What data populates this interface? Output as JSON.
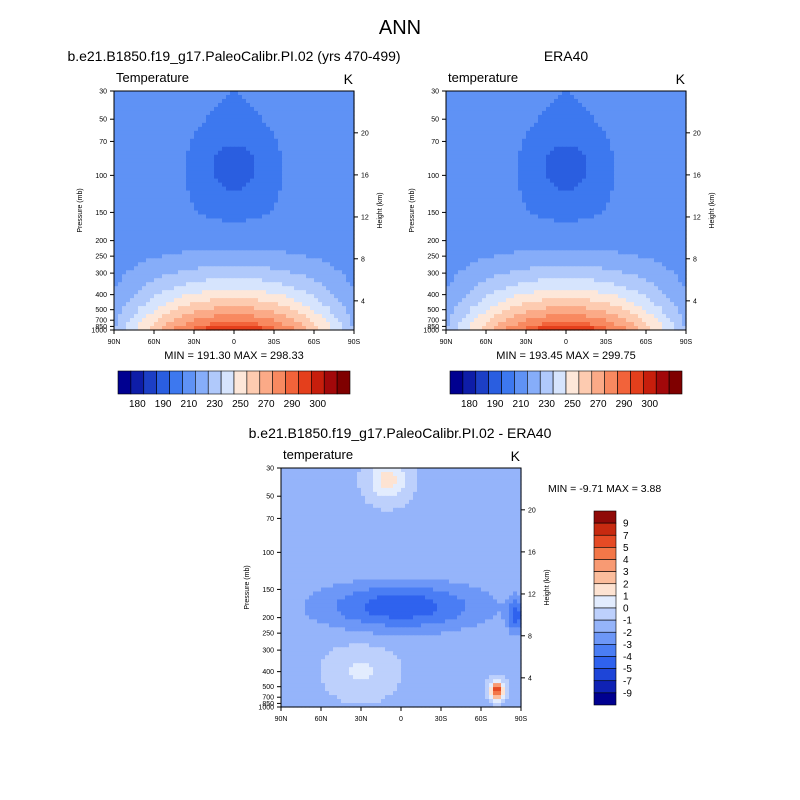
{
  "figure_title": "ANN",
  "colormaps": {
    "abs": [
      "#000090",
      "#0e1da8",
      "#1c3fc6",
      "#2a5ee0",
      "#3d78ef",
      "#5f92f5",
      "#86adf9",
      "#b0c9fb",
      "#d6e4fd",
      "#fde7d9",
      "#fdcbb0",
      "#fbaa87",
      "#f88960",
      "#f2633a",
      "#e43f1c",
      "#c71e0c",
      "#a2080a",
      "#7f0000"
    ],
    "diff": [
      "#000090",
      "#0f22b4",
      "#1e45d8",
      "#2f62ee",
      "#4a7df4",
      "#6d97f7",
      "#95b4fa",
      "#bdd0fc",
      "#e2ecfe",
      "#fde3d2",
      "#fbbd9c",
      "#f89a73",
      "#f37748",
      "#e54b25",
      "#c72a10",
      "#8f0a08"
    ]
  },
  "chart_data": [
    {
      "type": "contour",
      "title": "b.e21.B1850.f19_g17.PaleoCalibr.PI.02 (yrs 470-499)",
      "left_string": "Temperature",
      "right_string": "K",
      "xlabel": "",
      "ylabel": "Pressure (mb)",
      "y2label": "Height (km)",
      "x_ticks": [
        "90N",
        "60N",
        "30N",
        "0",
        "30S",
        "60S",
        "90S"
      ],
      "y_ticks": [
        "30",
        "50",
        "70",
        "100",
        "150",
        "200",
        "250",
        "300",
        "400",
        "500",
        "700",
        "850",
        "1000"
      ],
      "y2_ticks": [
        "20",
        "16",
        "12",
        "8",
        "4"
      ],
      "stats": "MIN = 191.30   MAX = 298.33",
      "min": 191.3,
      "max": 298.33,
      "colorbar_labels": [
        "180",
        "190",
        "210",
        "230",
        "250",
        "270",
        "290",
        "300"
      ],
      "levels": [
        180,
        185,
        190,
        200,
        210,
        220,
        230,
        240,
        250,
        260,
        270,
        280,
        290,
        295,
        300
      ],
      "variant": "model"
    },
    {
      "type": "contour",
      "title": "ERA40",
      "left_string": "temperature",
      "right_string": "K",
      "xlabel": "",
      "ylabel": "Pressure (mb)",
      "y2label": "Height (km)",
      "x_ticks": [
        "90N",
        "60N",
        "30N",
        "0",
        "30S",
        "60S",
        "90S"
      ],
      "y_ticks": [
        "30",
        "50",
        "70",
        "100",
        "150",
        "200",
        "250",
        "300",
        "400",
        "500",
        "700",
        "850",
        "1000"
      ],
      "y2_ticks": [
        "20",
        "16",
        "12",
        "8",
        "4"
      ],
      "stats": "MIN = 193.45   MAX = 299.75",
      "min": 193.45,
      "max": 299.75,
      "colorbar_labels": [
        "180",
        "190",
        "210",
        "230",
        "250",
        "270",
        "290",
        "300"
      ],
      "levels": [
        180,
        185,
        190,
        200,
        210,
        220,
        230,
        240,
        250,
        260,
        270,
        280,
        290,
        295,
        300
      ],
      "variant": "obs"
    },
    {
      "type": "contour",
      "title": "b.e21.B1850.f19_g17.PaleoCalibr.PI.02 - ERA40",
      "left_string": "temperature",
      "right_string": "K",
      "xlabel": "",
      "ylabel": "Pressure (mb)",
      "y2label": "Height (km)",
      "x_ticks": [
        "90N",
        "60N",
        "30N",
        "0",
        "30S",
        "60S",
        "90S"
      ],
      "y_ticks": [
        "30",
        "50",
        "70",
        "100",
        "150",
        "200",
        "250",
        "300",
        "400",
        "500",
        "700",
        "850",
        "1000"
      ],
      "y2_ticks": [
        "20",
        "16",
        "12",
        "8",
        "4"
      ],
      "stats": "MIN =  -9.71   MAX =   3.88",
      "min": -9.71,
      "max": 3.88,
      "colorbar_labels": [
        "9",
        "7",
        "5",
        "4",
        "3",
        "2",
        "1",
        "0",
        "-1",
        "-2",
        "-3",
        "-4",
        "-5",
        "-7",
        "-9"
      ],
      "levels": [
        9,
        7,
        5,
        4,
        3,
        2,
        1,
        0,
        -1,
        -2,
        -3,
        -4,
        -5,
        -7,
        -9
      ]
    }
  ]
}
